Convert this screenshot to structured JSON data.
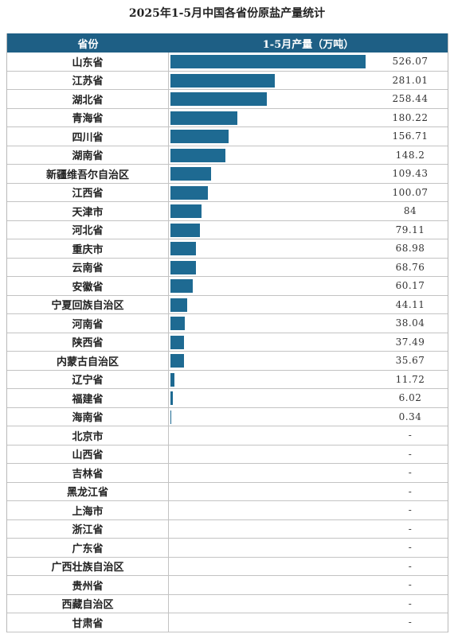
{
  "title": "2025年1-5月中国各省份原盐产量统计",
  "header": {
    "province": "省份",
    "value": "1-5月产量（万吨）"
  },
  "colors": {
    "header_bg": "#1e5f85",
    "bar": "#1e6a92"
  },
  "chart_data": {
    "type": "bar",
    "orientation": "horizontal",
    "title": "2025年1-5月中国各省份原盐产量统计",
    "xlabel": "1-5月产量（万吨）",
    "ylabel": "省份",
    "xlim": [
      0,
      540
    ],
    "rows": [
      {
        "province": "山东省",
        "value": 526.07,
        "label": "526.07"
      },
      {
        "province": "江苏省",
        "value": 281.01,
        "label": "281.01"
      },
      {
        "province": "湖北省",
        "value": 258.44,
        "label": "258.44"
      },
      {
        "province": "青海省",
        "value": 180.22,
        "label": "180.22"
      },
      {
        "province": "四川省",
        "value": 156.71,
        "label": "156.71"
      },
      {
        "province": "湖南省",
        "value": 148.2,
        "label": "148.2"
      },
      {
        "province": "新疆维吾尔自治区",
        "value": 109.43,
        "label": "109.43"
      },
      {
        "province": "江西省",
        "value": 100.07,
        "label": "100.07"
      },
      {
        "province": "天津市",
        "value": 84,
        "label": "84"
      },
      {
        "province": "河北省",
        "value": 79.11,
        "label": "79.11"
      },
      {
        "province": "重庆市",
        "value": 68.98,
        "label": "68.98"
      },
      {
        "province": "云南省",
        "value": 68.76,
        "label": "68.76"
      },
      {
        "province": "安徽省",
        "value": 60.17,
        "label": "60.17"
      },
      {
        "province": "宁夏回族自治区",
        "value": 44.11,
        "label": "44.11"
      },
      {
        "province": "河南省",
        "value": 38.04,
        "label": "38.04"
      },
      {
        "province": "陕西省",
        "value": 37.49,
        "label": "37.49"
      },
      {
        "province": "内蒙古自治区",
        "value": 35.67,
        "label": "35.67"
      },
      {
        "province": "辽宁省",
        "value": 11.72,
        "label": "11.72"
      },
      {
        "province": "福建省",
        "value": 6.02,
        "label": "6.02"
      },
      {
        "province": "海南省",
        "value": 0.34,
        "label": "0.34"
      },
      {
        "province": "北京市",
        "value": null,
        "label": "-"
      },
      {
        "province": "山西省",
        "value": null,
        "label": "-"
      },
      {
        "province": "吉林省",
        "value": null,
        "label": "-"
      },
      {
        "province": "黑龙江省",
        "value": null,
        "label": "-"
      },
      {
        "province": "上海市",
        "value": null,
        "label": "-"
      },
      {
        "province": "浙江省",
        "value": null,
        "label": "-"
      },
      {
        "province": "广东省",
        "value": null,
        "label": "-"
      },
      {
        "province": "广西壮族自治区",
        "value": null,
        "label": "-"
      },
      {
        "province": "贵州省",
        "value": null,
        "label": "-"
      },
      {
        "province": "西藏自治区",
        "value": null,
        "label": "-"
      },
      {
        "province": "甘肃省",
        "value": null,
        "label": "-"
      }
    ]
  }
}
